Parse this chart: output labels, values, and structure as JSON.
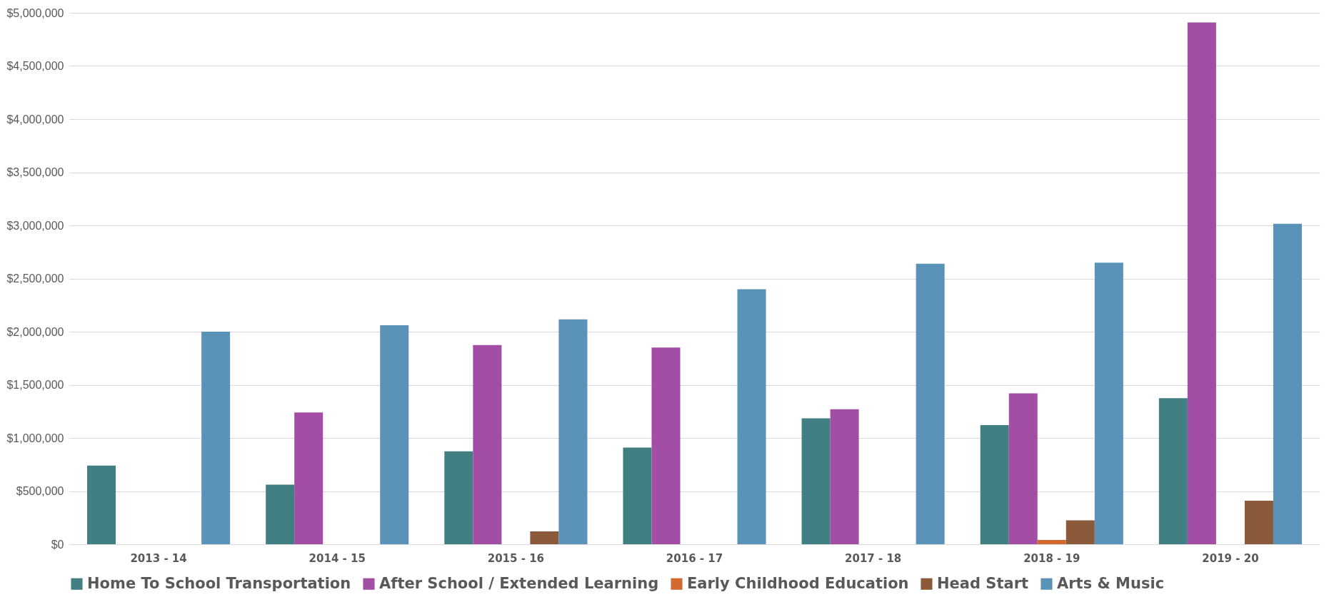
{
  "chart_data": {
    "type": "bar",
    "categories": [
      "2013 - 14",
      "2014 - 15",
      "2015 - 16",
      "2016 - 17",
      "2017 - 18",
      "2018 - 19",
      "2019 - 20"
    ],
    "series": [
      {
        "name": "Home To School Transportation",
        "color": "#427f83",
        "values": [
          740000,
          560000,
          875000,
          910000,
          1185000,
          1120000,
          1375000
        ]
      },
      {
        "name": "After School / Extended Learning",
        "color": "#a24ea5",
        "values": [
          null,
          1240000,
          1875000,
          1850000,
          1270000,
          1420000,
          4910000
        ]
      },
      {
        "name": "Early Childhood Education",
        "color": "#d2692e",
        "values": [
          null,
          null,
          null,
          null,
          null,
          40000,
          null
        ]
      },
      {
        "name": "Head Start",
        "color": "#8b5a3a",
        "values": [
          null,
          null,
          120000,
          null,
          null,
          225000,
          410000
        ]
      },
      {
        "name": "Arts & Music",
        "color": "#5b93b8",
        "values": [
          2000000,
          2060000,
          2115000,
          2400000,
          2640000,
          2650000,
          3015000
        ]
      }
    ],
    "ylim": [
      0,
      5000000
    ],
    "yticks": [
      {
        "value": 0,
        "label": "$0"
      },
      {
        "value": 500000,
        "label": "$500,000"
      },
      {
        "value": 1000000,
        "label": "$1,000,000"
      },
      {
        "value": 1500000,
        "label": "$1,500,000"
      },
      {
        "value": 2000000,
        "label": "$2,000,000"
      },
      {
        "value": 2500000,
        "label": "$2,500,000"
      },
      {
        "value": 3000000,
        "label": "$3,000,000"
      },
      {
        "value": 3500000,
        "label": "$3,500,000"
      },
      {
        "value": 4000000,
        "label": "$4,000,000"
      },
      {
        "value": 4500000,
        "label": "$4,500,000"
      },
      {
        "value": 5000000,
        "label": "$5,000,000"
      }
    ],
    "grid": "y",
    "legend": "bottom"
  }
}
